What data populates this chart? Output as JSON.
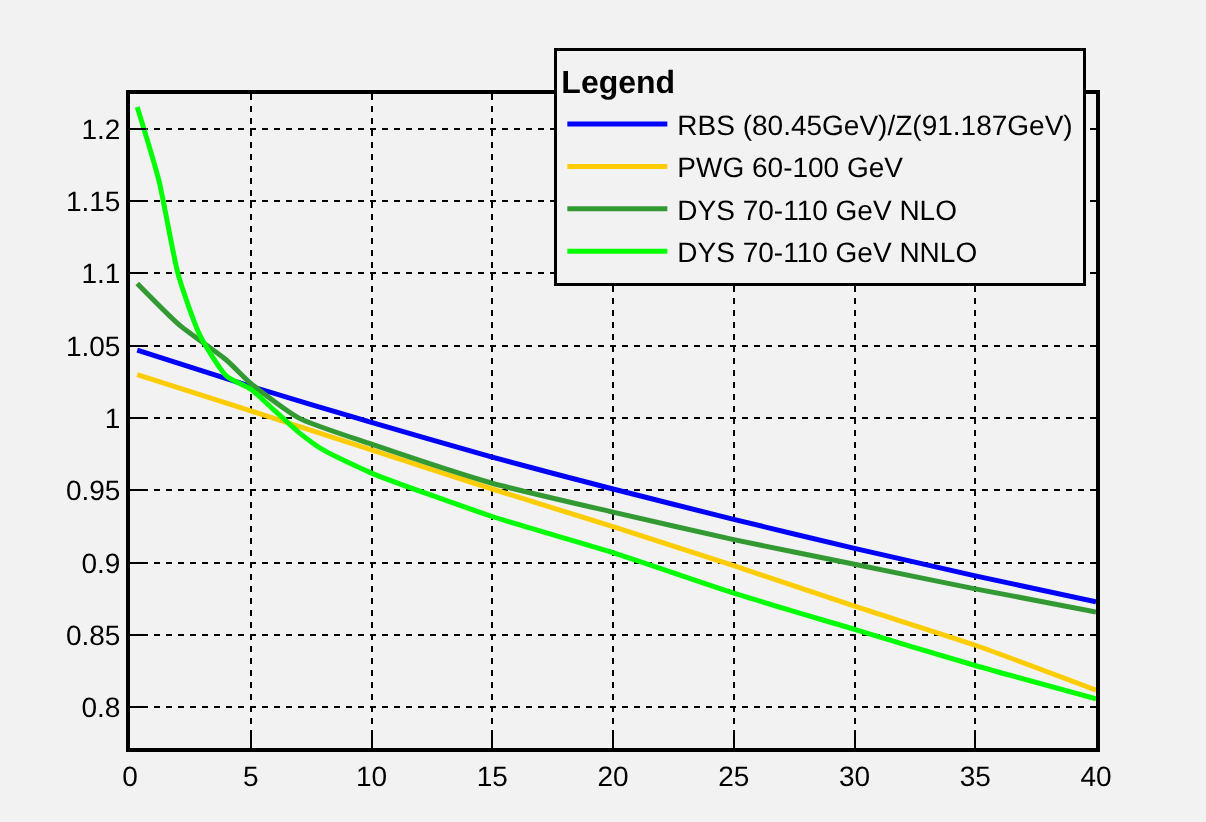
{
  "chart_data": {
    "type": "line",
    "legend_title": "Legend",
    "legend": "top right",
    "grid": true,
    "line_style": "solid",
    "marker": "none",
    "xlim": [
      0,
      40
    ],
    "ylim": [
      0.772,
      1.224
    ],
    "xticks": [
      0,
      5,
      10,
      15,
      20,
      25,
      30,
      35,
      40
    ],
    "yticks": [
      0.8,
      0.85,
      0.9,
      0.95,
      1,
      1.05,
      1.1,
      1.15,
      1.2
    ],
    "series": [
      {
        "name": "RBS (80.45GeV)/Z(91.187GeV)",
        "color": "#0000ff",
        "x": [
          0.3,
          5,
          10,
          15,
          20,
          25,
          30,
          35,
          40
        ],
        "values": [
          1.047,
          1.022,
          0.997,
          0.973,
          0.951,
          0.93,
          0.91,
          0.891,
          0.873
        ]
      },
      {
        "name": "PWG 60-100 GeV",
        "color": "#ffcc00",
        "x": [
          0.3,
          5,
          10,
          15,
          20,
          25,
          30,
          35,
          40
        ],
        "values": [
          1.03,
          1.005,
          0.978,
          0.951,
          0.925,
          0.898,
          0.87,
          0.843,
          0.812
        ]
      },
      {
        "name": "DYS 70-110 GeV NLO",
        "color": "#339933",
        "x": [
          0.3,
          2,
          4,
          5,
          7,
          10,
          15,
          20,
          25,
          30,
          35,
          40
        ],
        "values": [
          1.093,
          1.065,
          1.04,
          1.024,
          1.0,
          0.982,
          0.955,
          0.935,
          0.916,
          0.899,
          0.882,
          0.866
        ]
      },
      {
        "name": "DYS 70-110 GeV NNLO",
        "color": "#00ff00",
        "x": [
          0.3,
          1.2,
          2,
          2.9,
          4,
          5,
          6,
          7,
          8,
          10,
          15,
          20,
          25,
          30,
          35,
          40
        ],
        "values": [
          1.215,
          1.164,
          1.099,
          1.057,
          1.029,
          1.02,
          1.005,
          0.99,
          0.978,
          0.962,
          0.932,
          0.907,
          0.879,
          0.854,
          0.829,
          0.806
        ]
      }
    ]
  }
}
